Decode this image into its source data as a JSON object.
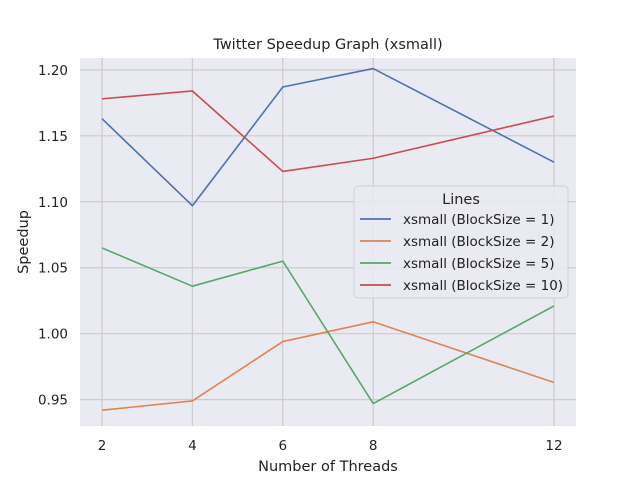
{
  "chart_data": {
    "type": "line",
    "title": "Twitter Speedup Graph (xsmall)",
    "xlabel": "Number of Threads",
    "ylabel": "Speedup",
    "x": [
      2,
      4,
      6,
      8,
      12
    ],
    "x_tick_labels": [
      "2",
      "4",
      "6",
      "8",
      "12"
    ],
    "y_ticks": [
      0.95,
      1.0,
      1.05,
      1.1,
      1.15,
      1.2
    ],
    "y_tick_labels": [
      "0.95",
      "1.00",
      "1.05",
      "1.10",
      "1.15",
      "1.20"
    ],
    "ylim": [
      0.93,
      1.209
    ],
    "grid": true,
    "legend": {
      "title": "Lines",
      "placement": "center-right"
    },
    "series": [
      {
        "name": "xsmall (BlockSize = 1)",
        "color": "#4c72b0",
        "values": [
          1.163,
          1.097,
          1.187,
          1.201,
          1.13
        ]
      },
      {
        "name": "xsmall (BlockSize = 2)",
        "color": "#dd8452",
        "values": [
          0.942,
          0.949,
          0.994,
          1.009,
          0.963
        ]
      },
      {
        "name": "xsmall (BlockSize = 5)",
        "color": "#55a868",
        "values": [
          1.065,
          1.036,
          1.055,
          0.947,
          1.021
        ]
      },
      {
        "name": "xsmall (BlockSize = 10)",
        "color": "#c44e52",
        "values": [
          1.178,
          1.184,
          1.123,
          1.133,
          1.165
        ]
      }
    ]
  }
}
